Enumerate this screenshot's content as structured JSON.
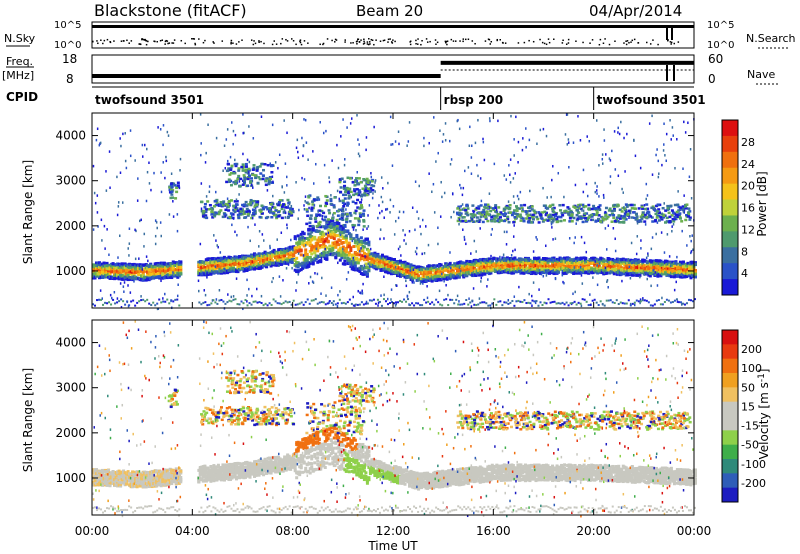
{
  "header": {
    "station": "Blackstone (fitACF)",
    "beam": "Beam 20",
    "date": "04/Apr/2014"
  },
  "time_axis": {
    "label": "Time UT",
    "ticks": [
      "00:00",
      "04:00",
      "08:00",
      "12:00",
      "16:00",
      "20:00",
      "00:00"
    ]
  },
  "nsky_panel": {
    "left_label": "N.Sky",
    "right_label": "N.Search",
    "left_ticks": [
      "10^5",
      "10^0"
    ],
    "right_ticks": [
      "10^5",
      "10^0"
    ]
  },
  "freq_panel": {
    "left_label_line1": "Freq.",
    "left_label_line2": "[MHz]",
    "right_label": "Nave",
    "left_ticks": [
      "18",
      "8"
    ],
    "right_ticks": [
      "60",
      "0"
    ],
    "freq_steps": [
      {
        "t0": 0,
        "t1": 13.9,
        "level": 0.25
      },
      {
        "t0": 13.9,
        "t1": 24,
        "level": 0.72
      }
    ]
  },
  "cpid": {
    "label": "CPID",
    "segments": [
      {
        "name": "twofsound 3501",
        "start_hour": 0
      },
      {
        "name": "rbsp 200",
        "start_hour": 13.9
      },
      {
        "name": "twofsound 3501",
        "start_hour": 20.0
      }
    ]
  },
  "power_panel": {
    "ylabel": "Slant Range [km]",
    "yticks": [
      "1000",
      "2000",
      "3000",
      "4000"
    ],
    "colorbar_label": "Power [dB]",
    "colorbar_ticks": [
      "4",
      "8",
      "12",
      "16",
      "20",
      "24",
      "28"
    ],
    "colors": [
      "#1a1ad6",
      "#2a52c8",
      "#3a6fa0",
      "#4f9a6e",
      "#6cb04e",
      "#bfd23a",
      "#f5c21a",
      "#f59a12",
      "#f0700e",
      "#e8400c",
      "#dd1010"
    ]
  },
  "velocity_panel": {
    "ylabel": "Slant Range [km]",
    "yticks": [
      "1000",
      "2000",
      "3000",
      "4000"
    ],
    "colorbar_label": "Velocity [m s-1]",
    "colorbar_ticks": [
      "200",
      "100",
      "50",
      "15",
      "-15",
      "-50",
      "-100",
      "-200"
    ],
    "colors": [
      "#1c1cc0",
      "#2e5db8",
      "#2f8a7a",
      "#3fae4a",
      "#8ed04a",
      "#c8c8c0",
      "#c8c8c0",
      "#f0c060",
      "#f0a020",
      "#f07010",
      "#e83a10",
      "#d81010"
    ]
  },
  "chart_data": {
    "type": "heatmap",
    "x_range_hours": [
      0,
      24
    ],
    "y_range_km": [
      180,
      4500
    ],
    "data_gap_hours": [
      3.5,
      4.2
    ],
    "main_band": [
      {
        "t": 0,
        "range_km": 1050
      },
      {
        "t": 2,
        "range_km": 1000
      },
      {
        "t": 4,
        "range_km": 1100
      },
      {
        "t": 6,
        "range_km": 1200
      },
      {
        "t": 8,
        "range_km": 1400
      },
      {
        "t": 9.5,
        "range_km": 1750
      },
      {
        "t": 11,
        "range_km": 1300
      },
      {
        "t": 13,
        "range_km": 950
      },
      {
        "t": 16,
        "range_km": 1150
      },
      {
        "t": 20,
        "range_km": 1150
      },
      {
        "t": 24,
        "range_km": 1050
      }
    ],
    "panels": [
      "Power",
      "Velocity"
    ]
  }
}
